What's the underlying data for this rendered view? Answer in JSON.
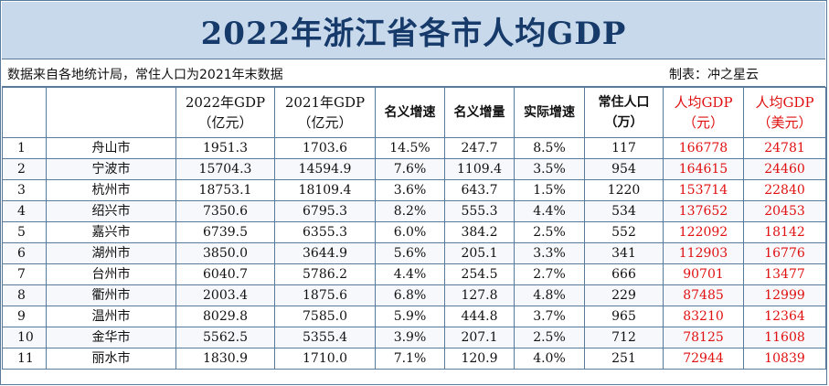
{
  "title": "2022年浙江省各市人均GDP",
  "note_left": "数据来自各地统计局，常住人口为2021年末数据",
  "note_right": "制表：冲之星云",
  "headers": {
    "no": "",
    "city": "",
    "gdp2022_l1": "2022年GDP",
    "gdp2022_l2": "（亿元）",
    "gdp2021_l1": "2021年GDP",
    "gdp2021_l2": "（亿元）",
    "nominal_growth": "名义增速",
    "nominal_increase": "名义增量",
    "real_growth": "实际增速",
    "pop_l1": "常住人口",
    "pop_l2": "（万）",
    "pc_cny_l1": "人均GDP",
    "pc_cny_l2": "（元）",
    "pc_usd_l1": "人均GDP",
    "pc_usd_l2": "（美元）"
  },
  "rows": [
    [
      "1",
      "舟山市",
      "1951.3",
      "1703.6",
      "14.5%",
      "247.7",
      "8.5%",
      "117",
      "166778",
      "24781"
    ],
    [
      "2",
      "宁波市",
      "15704.3",
      "14594.9",
      "7.6%",
      "1109.4",
      "3.5%",
      "954",
      "164615",
      "24460"
    ],
    [
      "3",
      "杭州市",
      "18753.1",
      "18109.4",
      "3.6%",
      "643.7",
      "1.5%",
      "1220",
      "153714",
      "22840"
    ],
    [
      "4",
      "绍兴市",
      "7350.6",
      "6795.3",
      "8.2%",
      "555.3",
      "4.4%",
      "534",
      "137652",
      "20453"
    ],
    [
      "5",
      "嘉兴市",
      "6739.5",
      "6355.3",
      "6.0%",
      "384.2",
      "2.5%",
      "552",
      "122092",
      "18142"
    ],
    [
      "6",
      "湖州市",
      "3850.0",
      "3644.9",
      "5.6%",
      "205.1",
      "3.3%",
      "341",
      "112903",
      "16776"
    ],
    [
      "7",
      "台州市",
      "6040.7",
      "5786.2",
      "4.4%",
      "254.5",
      "2.7%",
      "666",
      "90701",
      "13477"
    ],
    [
      "8",
      "衢州市",
      "2003.4",
      "1875.6",
      "6.8%",
      "127.8",
      "4.8%",
      "229",
      "87485",
      "12999"
    ],
    [
      "9",
      "温州市",
      "8029.8",
      "7585.0",
      "5.9%",
      "444.8",
      "3.7%",
      "965",
      "83210",
      "12364"
    ],
    [
      "10",
      "金华市",
      "5562.5",
      "5355.4",
      "3.9%",
      "207.1",
      "2.5%",
      "712",
      "78125",
      "11608"
    ],
    [
      "11",
      "丽水市",
      "1830.9",
      "1710.0",
      "7.1%",
      "120.9",
      "4.0%",
      "251",
      "72944",
      "10839"
    ]
  ],
  "colors": {
    "title_bg": "#c9d9ec",
    "title_text": "#163a6a",
    "highlight": "#e01010",
    "grid": "#5a7a9a"
  }
}
